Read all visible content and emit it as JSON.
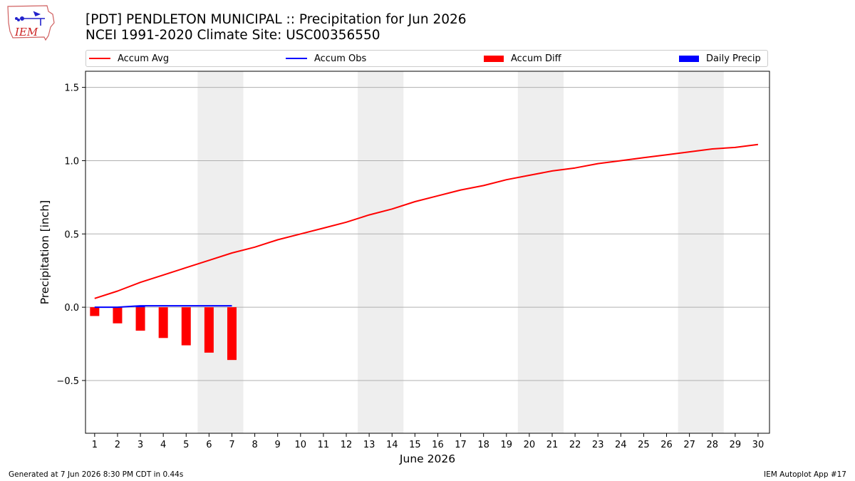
{
  "header": {
    "title": "[PDT] PENDLETON MUNICIPAL :: Precipitation for Jun 2026",
    "subtitle": "NCEI 1991-2020 Climate Site: USC00356550",
    "logo_text": "IEM"
  },
  "legend": {
    "items": [
      {
        "label": "Accum Avg",
        "color": "#ff0000",
        "kind": "line"
      },
      {
        "label": "Accum Obs",
        "color": "#0000ff",
        "kind": "line"
      },
      {
        "label": "Accum Diff",
        "color": "#ff0000",
        "kind": "bar"
      },
      {
        "label": "Daily Precip",
        "color": "#0000ff",
        "kind": "bar"
      }
    ]
  },
  "footer": {
    "generated": "Generated at 7 Jun 2026 8:30 PM CDT in 0.44s",
    "app": "IEM Autoplot App #17"
  },
  "chart_data": {
    "type": "line",
    "xlabel": "June 2026",
    "ylabel": "Precipitation [inch]",
    "xlim": [
      0.6,
      30.5
    ],
    "ylim": [
      -0.86,
      1.61
    ],
    "yticks": [
      -0.5,
      0.0,
      0.5,
      1.0,
      1.5
    ],
    "ytick_labels": [
      "−0.5",
      "0.0",
      "0.5",
      "1.0",
      "1.5"
    ],
    "x": [
      1,
      2,
      3,
      4,
      5,
      6,
      7,
      8,
      9,
      10,
      11,
      12,
      13,
      14,
      15,
      16,
      17,
      18,
      19,
      20,
      21,
      22,
      23,
      24,
      25,
      26,
      27,
      28,
      29,
      30
    ],
    "weekend_bands": [
      [
        5.5,
        7.5
      ],
      [
        12.5,
        14.5
      ],
      [
        19.5,
        21.5
      ],
      [
        26.5,
        28.5
      ]
    ],
    "grid": "horizontal",
    "legend_position": "top",
    "series": [
      {
        "name": "Accum Avg",
        "kind": "line",
        "color": "#ff0000",
        "x": [
          1,
          2,
          3,
          4,
          5,
          6,
          7,
          8,
          9,
          10,
          11,
          12,
          13,
          14,
          15,
          16,
          17,
          18,
          19,
          20,
          21,
          22,
          23,
          24,
          25,
          26,
          27,
          28,
          29,
          30
        ],
        "values": [
          0.06,
          0.11,
          0.17,
          0.22,
          0.27,
          0.32,
          0.37,
          0.41,
          0.46,
          0.5,
          0.54,
          0.58,
          0.63,
          0.67,
          0.72,
          0.76,
          0.8,
          0.83,
          0.87,
          0.9,
          0.93,
          0.95,
          0.98,
          1.0,
          1.02,
          1.04,
          1.06,
          1.08,
          1.09,
          1.11
        ]
      },
      {
        "name": "Accum Obs",
        "kind": "line",
        "color": "#0000ff",
        "x": [
          1,
          2,
          3,
          4,
          5,
          6,
          7
        ],
        "values": [
          0.0,
          0.0,
          0.01,
          0.01,
          0.01,
          0.01,
          0.01
        ]
      },
      {
        "name": "Accum Diff",
        "kind": "bar",
        "color": "#ff0000",
        "x": [
          1,
          2,
          3,
          4,
          5,
          6,
          7
        ],
        "values": [
          -0.06,
          -0.11,
          -0.16,
          -0.21,
          -0.26,
          -0.31,
          -0.36
        ]
      },
      {
        "name": "Daily Precip",
        "kind": "bar",
        "color": "#0000ff",
        "x": [
          1,
          2,
          3,
          4,
          5,
          6,
          7
        ],
        "values": [
          0.0,
          0.0,
          0.01,
          0.0,
          0.0,
          0.0,
          0.0
        ]
      }
    ]
  }
}
